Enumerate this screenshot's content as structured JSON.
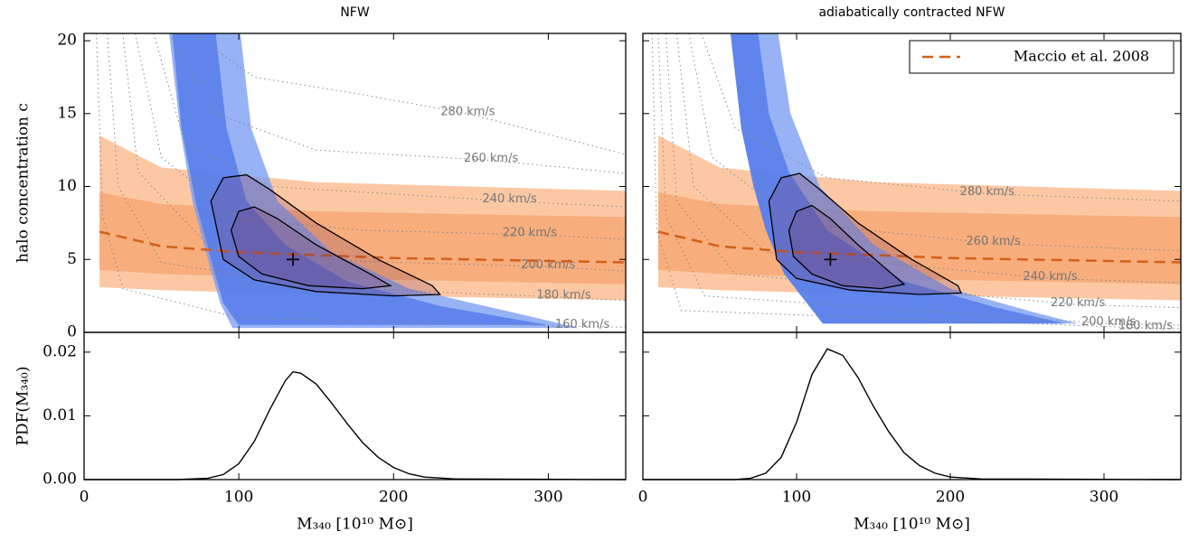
{
  "chart_data": [
    {
      "type": "contour",
      "title": "NFW",
      "ylabel": "halo concentration c",
      "xlim": [
        0,
        350
      ],
      "ylim": [
        0,
        20.5
      ],
      "xticks": [
        0,
        100,
        200,
        300
      ],
      "yticks": [
        0,
        5,
        10,
        15,
        20
      ],
      "show_xtick_labels": false,
      "show_ytick_labels": true,
      "model_band_2sigma": {
        "x": [
          10,
          50,
          150,
          350
        ],
        "lower": [
          3.1,
          2.9,
          2.6,
          2.2
        ],
        "upper": [
          13.5,
          11.3,
          10.3,
          9.7
        ],
        "color": "#fcc8a4"
      },
      "model_band_1sigma": {
        "x": [
          10,
          50,
          150,
          350
        ],
        "lower": [
          4.3,
          4.0,
          3.7,
          3.3
        ],
        "upper": [
          9.6,
          8.8,
          8.3,
          7.9
        ],
        "color": "#f7ad7c"
      },
      "model_line": {
        "x": [
          10,
          50,
          100,
          200,
          350
        ],
        "y": [
          6.9,
          5.9,
          5.5,
          5.1,
          4.8
        ],
        "color": "#d4601a"
      },
      "constraint_2sigma": {
        "x": [
          55,
          62,
          70,
          80,
          88,
          96,
          320,
          280,
          210,
          160,
          125,
          108,
          101
        ],
        "y": [
          20.5,
          14,
          9,
          5,
          2,
          0.3,
          0.3,
          1.3,
          3,
          5.5,
          9,
          14,
          20.5
        ],
        "color": "#7a9cf2"
      },
      "constraint_1sigma": {
        "x": [
          57,
          63,
          72,
          82,
          90,
          100,
          300,
          230,
          170,
          130,
          105,
          92,
          85
        ],
        "y": [
          20.5,
          14,
          9,
          5,
          2,
          0.5,
          0.5,
          1.8,
          3.5,
          6,
          9,
          14,
          20.5
        ],
        "color": "#4f78ea"
      },
      "contour_2sigma": {
        "x": [
          82,
          90,
          105,
          120,
          150,
          190,
          225,
          230,
          200,
          150,
          110,
          90,
          82
        ],
        "y": [
          9,
          10.6,
          10.8,
          9.8,
          7.5,
          5,
          3.2,
          2.6,
          2.5,
          2.8,
          3.6,
          5,
          9
        ]
      },
      "contour_1sigma": {
        "x": [
          95,
          100,
          110,
          125,
          150,
          185,
          198,
          180,
          145,
          115,
          100,
          95
        ],
        "y": [
          7,
          8.3,
          8.6,
          7.8,
          6,
          4,
          3.2,
          3,
          3.2,
          4,
          5.2,
          7
        ]
      },
      "best_fit": {
        "x": 135,
        "y": 5
      },
      "velocity_curves": [
        {
          "label": "280 km/s",
          "x": [
            70,
            110,
            180,
            248,
            350
          ],
          "y": [
            20.5,
            17.5,
            16.3,
            15,
            12.2
          ]
        },
        {
          "label": "260 km/s",
          "x": [
            55,
            85,
            150,
            263,
            350
          ],
          "y": [
            20.5,
            15,
            12.5,
            11.8,
            10.9
          ]
        },
        {
          "label": "240 km/s",
          "x": [
            45,
            65,
            120,
            275,
            350
          ],
          "y": [
            20.5,
            13,
            10,
            9.0,
            8.6
          ]
        },
        {
          "label": "220 km/s",
          "x": [
            33,
            50,
            100,
            180,
            288,
            350
          ],
          "y": [
            20.5,
            12,
            7.8,
            7.0,
            6.7,
            6.4
          ]
        },
        {
          "label": "200 km/s",
          "x": [
            25,
            35,
            80,
            170,
            300,
            350
          ],
          "y": [
            20.5,
            11,
            6,
            4.9,
            4.5,
            4.2
          ]
        },
        {
          "label": "180 km/s",
          "x": [
            15,
            22,
            50,
            150,
            310,
            350
          ],
          "y": [
            20.5,
            10,
            4.8,
            3.1,
            2.4,
            2.2
          ]
        },
        {
          "label": "160 km/s",
          "x": [
            8,
            12,
            25,
            100,
            322,
            350
          ],
          "y": [
            20.5,
            8,
            3,
            1.0,
            0.4,
            0.35
          ]
        }
      ]
    },
    {
      "type": "line",
      "xlabel": "M₃₄₀ [10¹⁰ M⊙]",
      "ylabel": "PDF(M₃₄₀)",
      "xlim": [
        0,
        350
      ],
      "ylim": [
        0,
        0.0231
      ],
      "xticks": [
        0,
        100,
        200,
        300
      ],
      "yticks": [
        {
          "value": 0,
          "label": "0.00"
        },
        0.01,
        0.02
      ],
      "show_xtick_labels": true,
      "show_ytick_labels": true,
      "color": "#000000",
      "x": [
        0,
        60,
        80,
        90,
        100,
        110,
        120,
        130,
        135,
        140,
        150,
        160,
        170,
        180,
        190,
        200,
        210,
        220,
        240,
        350
      ],
      "values": [
        0,
        0,
        0.0002,
        0.0008,
        0.0025,
        0.006,
        0.011,
        0.0155,
        0.0169,
        0.0167,
        0.015,
        0.012,
        0.0088,
        0.0058,
        0.0035,
        0.0019,
        0.0009,
        0.0004,
        0.0001,
        0
      ]
    },
    {
      "type": "contour",
      "title": "adiabatically contracted NFW",
      "legend": "upper right",
      "xlim": [
        0,
        350
      ],
      "ylim": [
        0,
        20.5
      ],
      "xticks": [
        0,
        100,
        200,
        300
      ],
      "yticks": [
        0,
        5,
        10,
        15,
        20
      ],
      "show_xtick_labels": false,
      "show_ytick_labels": false,
      "model_band_2sigma": {
        "x": [
          10,
          50,
          150,
          350
        ],
        "lower": [
          3.1,
          2.9,
          2.6,
          2.2
        ],
        "upper": [
          13.5,
          11.3,
          10.3,
          9.7
        ],
        "color": "#fcc8a4"
      },
      "model_band_1sigma": {
        "x": [
          10,
          50,
          150,
          350
        ],
        "lower": [
          4.3,
          4.0,
          3.7,
          3.3
        ],
        "upper": [
          9.6,
          8.8,
          8.3,
          7.9
        ],
        "color": "#f7ad7c"
      },
      "model_line": {
        "name": "Maccio et al. 2008",
        "x": [
          10,
          50,
          100,
          200,
          350
        ],
        "y": [
          6.9,
          5.9,
          5.5,
          5.1,
          4.8
        ],
        "color": "#d4601a"
      },
      "constraint_2sigma": {
        "x": [
          57,
          64,
          72,
          80,
          92,
          117,
          283,
          250,
          200,
          150,
          115,
          96,
          88
        ],
        "y": [
          20.5,
          14,
          10,
          7,
          4,
          0.6,
          0.6,
          1.5,
          3,
          6,
          10,
          15,
          20.5
        ],
        "color": "#7a9cf2"
      },
      "constraint_1sigma": {
        "x": [
          57,
          64,
          72,
          80,
          92,
          117,
          275,
          230,
          170,
          120,
          95,
          82,
          75
        ],
        "y": [
          20.5,
          14,
          10,
          7,
          4,
          0.6,
          0.6,
          1.7,
          3.5,
          7,
          11,
          15,
          20.5
        ],
        "color": "#4f78ea"
      },
      "contour_2sigma": {
        "x": [
          82,
          90,
          102,
          115,
          140,
          175,
          205,
          207,
          180,
          135,
          100,
          87,
          82
        ],
        "y": [
          9,
          10.6,
          10.9,
          9.8,
          7.5,
          5,
          3.2,
          2.7,
          2.6,
          2.9,
          3.7,
          5,
          9
        ]
      },
      "contour_1sigma": {
        "x": [
          95,
          100,
          110,
          122,
          140,
          160,
          170,
          155,
          130,
          110,
          98,
          95
        ],
        "y": [
          7,
          8.3,
          8.7,
          7.8,
          6,
          4.2,
          3.3,
          3,
          3.2,
          4,
          5.2,
          7
        ]
      },
      "best_fit": {
        "x": 122,
        "y": 5
      },
      "velocity_curves": [
        {
          "label": "280 km/s",
          "x": [
            38,
            60,
            120,
            224,
            350
          ],
          "y": [
            20.5,
            14,
            10.6,
            9.5,
            9.0
          ]
        },
        {
          "label": "260 km/s",
          "x": [
            30,
            45,
            100,
            228,
            350
          ],
          "y": [
            20.5,
            12,
            7.5,
            6.1,
            5.6
          ]
        },
        {
          "label": "240 km/s",
          "x": [
            22,
            33,
            80,
            265,
            350
          ],
          "y": [
            20.5,
            10,
            5.5,
            3.7,
            3.4
          ]
        },
        {
          "label": "220 km/s",
          "x": [
            15,
            22,
            60,
            283,
            350
          ],
          "y": [
            20.5,
            9,
            4,
            1.9,
            1.7
          ]
        },
        {
          "label": "200 km/s",
          "x": [
            10,
            15,
            40,
            303,
            350
          ],
          "y": [
            20.5,
            8,
            2.5,
            0.6,
            0.5
          ]
        },
        {
          "label": "180 km/s",
          "x": [
            6,
            9,
            25,
            327,
            350
          ],
          "y": [
            20.5,
            7,
            1.5,
            0.3,
            0.25
          ]
        }
      ]
    },
    {
      "type": "line",
      "xlabel": "M₃₄₀ [10¹⁰ M⊙]",
      "xlim": [
        0,
        350
      ],
      "ylim": [
        0,
        0.0231
      ],
      "xticks": [
        0,
        100,
        200,
        300
      ],
      "yticks": [
        {
          "value": 0,
          "label": "0.00"
        },
        0.01,
        0.02
      ],
      "show_xtick_labels": true,
      "show_ytick_labels": false,
      "color": "#000000",
      "x": [
        0,
        60,
        70,
        80,
        90,
        100,
        110,
        120,
        130,
        140,
        150,
        160,
        170,
        180,
        190,
        200,
        220,
        350
      ],
      "values": [
        0,
        0,
        0.0002,
        0.001,
        0.0035,
        0.009,
        0.0165,
        0.0205,
        0.0195,
        0.016,
        0.0115,
        0.0075,
        0.0042,
        0.0022,
        0.001,
        0.0004,
        0.0001,
        0
      ]
    }
  ]
}
